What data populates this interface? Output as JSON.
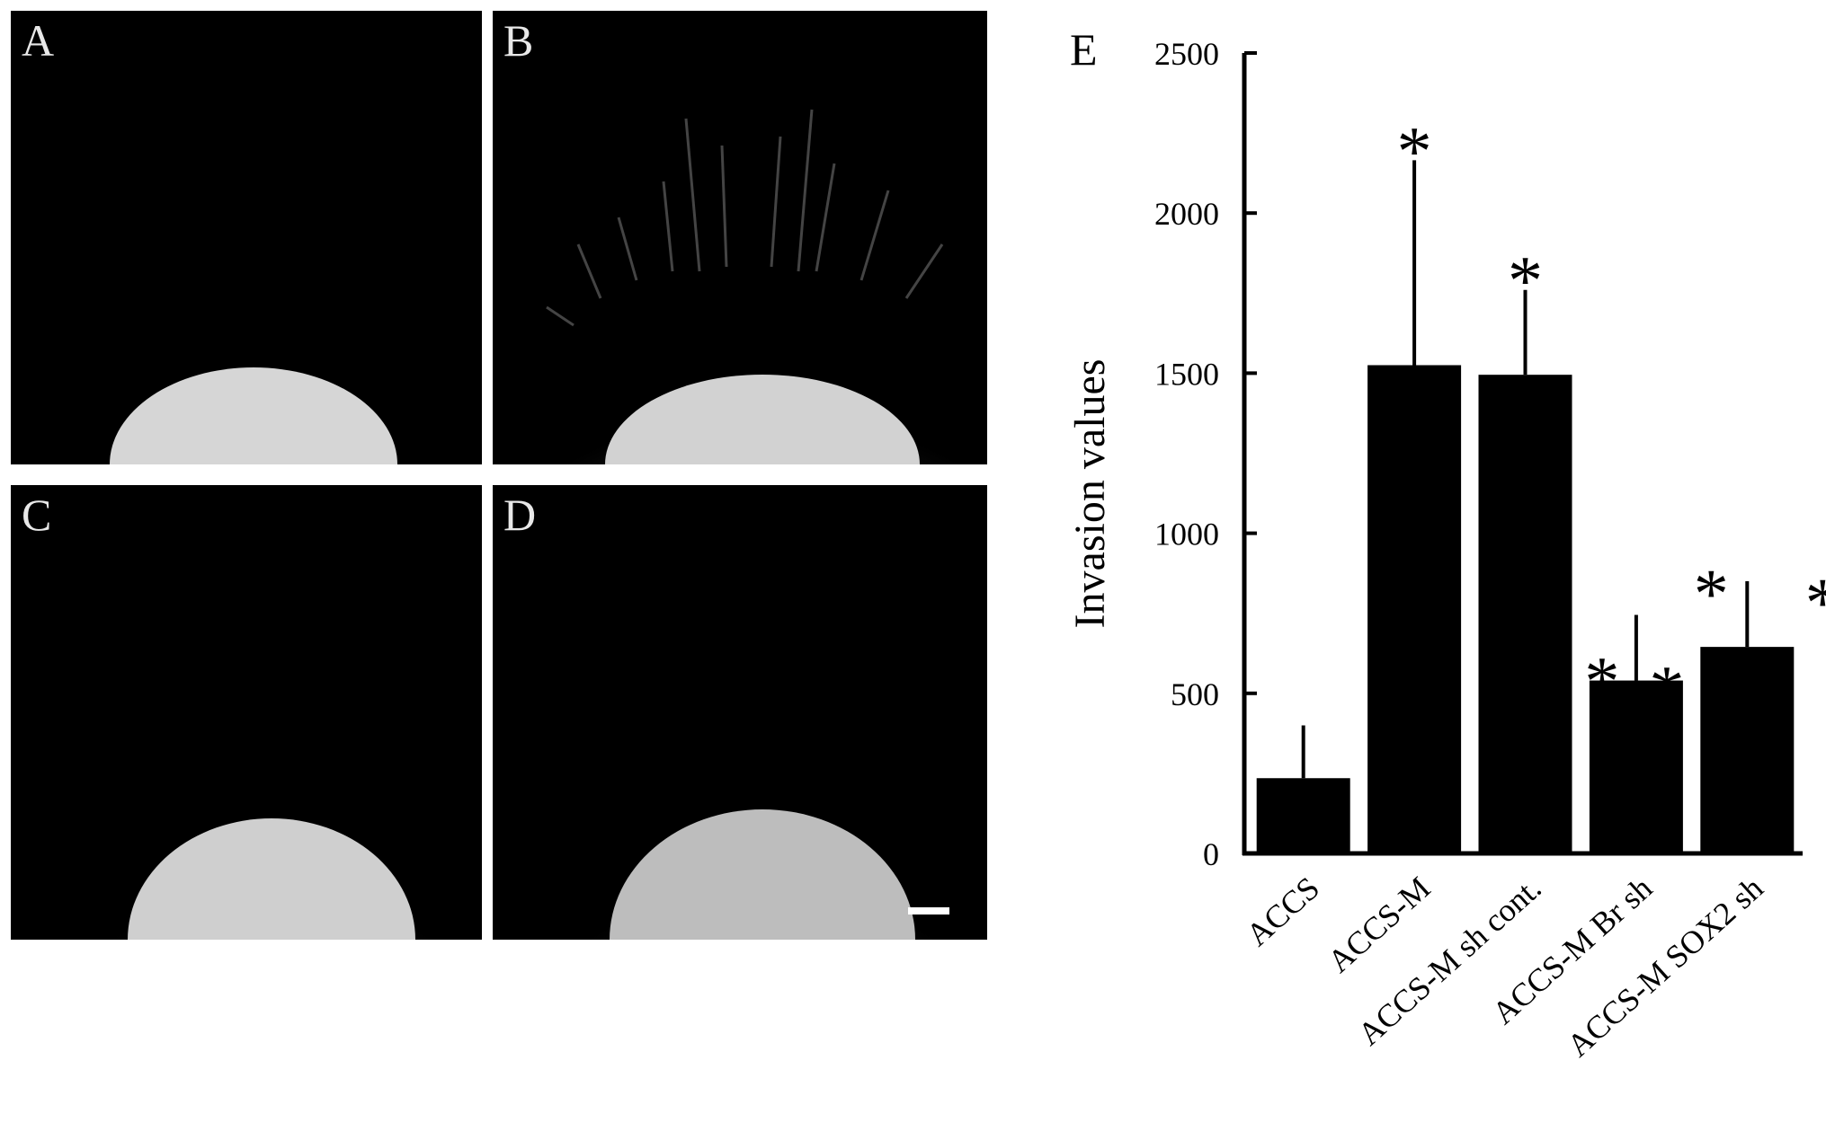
{
  "panels": [
    {
      "letter": "A"
    },
    {
      "letter": "B"
    },
    {
      "letter": "C"
    },
    {
      "letter": "D"
    }
  ],
  "chart_data": {
    "type": "bar",
    "panel_label": "E",
    "ylabel": "Invasion values",
    "ylim": [
      0,
      2500
    ],
    "yticks": [
      0,
      500,
      1000,
      1500,
      2000,
      2500
    ],
    "categories": [
      "ACCS",
      "ACCS-M",
      "ACCS-M sh cont.",
      "ACCS-M Br sh",
      "ACCS-M SOX2 sh"
    ],
    "values": [
      235,
      1525,
      1495,
      540,
      645
    ],
    "error_upper": [
      400,
      2165,
      1760,
      745,
      850
    ],
    "annotations": [
      {
        "category": "ACCS-M",
        "marks": [
          "*"
        ]
      },
      {
        "category": "ACCS-M sh cont.",
        "marks": [
          "*"
        ]
      },
      {
        "category": "ACCS-M Br sh",
        "marks": [
          "*",
          "*"
        ]
      },
      {
        "category": "ACCS-M SOX2 sh",
        "marks": [
          "*",
          "*"
        ]
      }
    ],
    "bar_color": "#000000"
  }
}
